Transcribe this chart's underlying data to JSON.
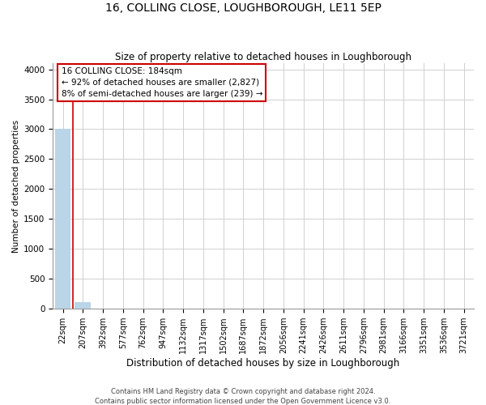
{
  "title": "16, COLLING CLOSE, LOUGHBOROUGH, LE11 5EP",
  "subtitle": "Size of property relative to detached houses in Loughborough",
  "xlabel": "Distribution of detached houses by size in Loughborough",
  "ylabel": "Number of detached properties",
  "footer_line1": "Contains HM Land Registry data © Crown copyright and database right 2024.",
  "footer_line2": "Contains public sector information licensed under the Open Government Licence v3.0.",
  "categories": [
    "22sqm",
    "207sqm",
    "392sqm",
    "577sqm",
    "762sqm",
    "947sqm",
    "1132sqm",
    "1317sqm",
    "1502sqm",
    "1687sqm",
    "1872sqm",
    "2056sqm",
    "2241sqm",
    "2426sqm",
    "2611sqm",
    "2796sqm",
    "2981sqm",
    "3166sqm",
    "3351sqm",
    "3536sqm",
    "3721sqm"
  ],
  "values": [
    3000,
    110,
    5,
    2,
    1,
    1,
    0,
    0,
    0,
    0,
    0,
    0,
    0,
    0,
    0,
    0,
    0,
    0,
    0,
    0,
    0
  ],
  "bar_color": "#bad4e8",
  "property_label": "16 COLLING CLOSE: 184sqm",
  "annotation_line1": "← 92% of detached houses are smaller (2,827)",
  "annotation_line2": "8% of semi-detached houses are larger (239) →",
  "ylim": [
    0,
    4100
  ],
  "yticks": [
    0,
    500,
    1000,
    1500,
    2000,
    2500,
    3000,
    3500,
    4000
  ],
  "annotation_box_color": "#cc0000",
  "vline_color": "#cc0000",
  "vline_x": 0.5,
  "title_fontsize": 10,
  "subtitle_fontsize": 8.5,
  "ylabel_fontsize": 7.5,
  "xlabel_fontsize": 8.5,
  "tick_fontsize": 7,
  "ytick_fontsize": 7.5,
  "footer_fontsize": 6,
  "annotation_fontsize": 7.5
}
